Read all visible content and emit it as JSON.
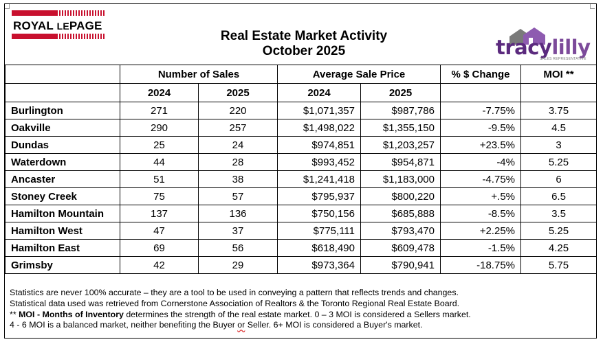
{
  "header": {
    "title_line1": "Real Estate Market Activity",
    "title_line2": "October 2025",
    "logo_left": {
      "royal": "ROYAL",
      "le": "LE",
      "page": "PAGE"
    },
    "logo_right": {
      "tracy": "tracy",
      "lilly": "lilly",
      "tagline": "SALES REPRESENTATIVE"
    }
  },
  "table": {
    "group_headers": {
      "sales": "Number of Sales",
      "price": "Average Sale Price",
      "change": "% $ Change",
      "moi": "MOI **"
    },
    "year_headers": [
      "2024",
      "2025",
      "2024",
      "2025"
    ],
    "rows": [
      {
        "city": "Burlington",
        "sales_2024": "271",
        "sales_2025": "220",
        "price_2024": "$1,071,357",
        "price_2025": "$987,786",
        "change": "-7.75%",
        "moi": "3.75"
      },
      {
        "city": "Oakville",
        "sales_2024": "290",
        "sales_2025": "257",
        "price_2024": "$1,498,022",
        "price_2025": "$1,355,150",
        "change": "-9.5%",
        "moi": "4.5"
      },
      {
        "city": "Dundas",
        "sales_2024": "25",
        "sales_2025": "24",
        "price_2024": "$974,851",
        "price_2025": "$1,203,257",
        "change": "+23.5%",
        "moi": "3"
      },
      {
        "city": "Waterdown",
        "sales_2024": "44",
        "sales_2025": "28",
        "price_2024": "$993,452",
        "price_2025": "$954,871",
        "change": "-4%",
        "moi": "5.25"
      },
      {
        "city": "Ancaster",
        "sales_2024": "51",
        "sales_2025": "38",
        "price_2024": "$1,241,418",
        "price_2025": "$1,183,000",
        "change": "-4.75%",
        "moi": "6"
      },
      {
        "city": "Stoney Creek",
        "sales_2024": "75",
        "sales_2025": "57",
        "price_2024": "$795,937",
        "price_2025": "$800,220",
        "change": "+.5%",
        "moi": "6.5"
      },
      {
        "city": "Hamilton Mountain",
        "sales_2024": "137",
        "sales_2025": "136",
        "price_2024": "$750,156",
        "price_2025": "$685,888",
        "change": "-8.5%",
        "moi": "3.5"
      },
      {
        "city": "Hamilton West",
        "sales_2024": "47",
        "sales_2025": "37",
        "price_2024": "$775,111",
        "price_2025": "$793,470",
        "change": "+2.25%",
        "moi": "5.25"
      },
      {
        "city": "Hamilton East",
        "sales_2024": "69",
        "sales_2025": "56",
        "price_2024": "$618,490",
        "price_2025": "$609,478",
        "change": "-1.5%",
        "moi": "4.25"
      },
      {
        "city": "Grimsby",
        "sales_2024": "42",
        "sales_2025": "29",
        "price_2024": "$973,364",
        "price_2025": "$790,941",
        "change": "-18.75%",
        "moi": "5.75"
      }
    ]
  },
  "notes": {
    "line1": "Statistics are never 100% accurate – they are a tool to be used in conveying a pattern that reflects trends and changes.",
    "line2": "Statistical data used was retrieved from Cornerstone Association of Realtors & the Toronto Regional Real Estate Board.",
    "line3_prefix": "** ",
    "line3_bold": "MOI - Months of Inventory",
    "line3_rest": " determines the strength of the real estate market. 0 – 3 MOI is considered a Sellers market.",
    "line4_a": "4 - 6 MOI is a balanced market, neither benefiting the Buyer ",
    "line4_or": "or",
    "line4_b": " Seller. 6+ MOI is considered a Buyer's market."
  },
  "colors": {
    "brand_red": "#c8102e",
    "brand_purple": "#5b2a7e"
  }
}
